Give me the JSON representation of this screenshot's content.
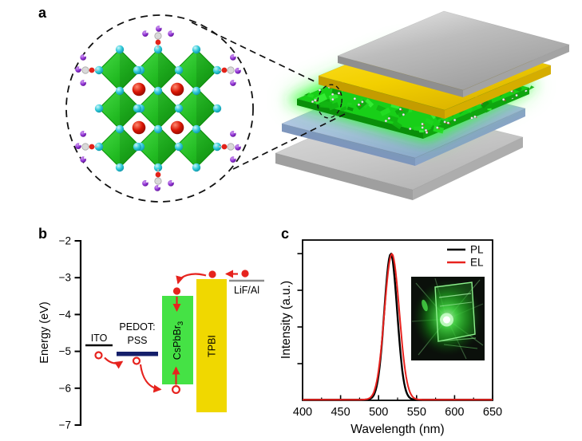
{
  "panels": {
    "a": {
      "label": "a",
      "crystal": {
        "octahedron_color": "#2bc42b",
        "octahedron_edge_color": "#0d930d",
        "cs_atom_color": "#cf1405",
        "halide_atom_color": "#27c9d8",
        "ligand_n_color": "#8d2fd2",
        "ligand_c_color": "#d9d9d9",
        "ligand_o_color": "#e32219"
      },
      "device_layers": [
        {
          "id": "silver",
          "name": "top-electrode-plate",
          "color": "#c9c9c9"
        },
        {
          "id": "gold",
          "name": "gold-layer",
          "color": "#f2cf00"
        },
        {
          "id": "green",
          "name": "perovskite-emissive-layer",
          "color": "#18cf18",
          "glow": "#2bff2b"
        },
        {
          "id": "blue",
          "name": "blue-layer",
          "color": "#a9bfe0"
        },
        {
          "id": "gray",
          "name": "substrate-plate",
          "color": "#cbcbcb"
        }
      ]
    },
    "b": {
      "label": "b",
      "axis": {
        "label": "Energy (eV)",
        "tick_labels": [
          "−2",
          "−3",
          "−4",
          "−5",
          "−6",
          "−7"
        ],
        "range_ev": [
          -7,
          -2
        ]
      },
      "materials": {
        "ito": {
          "label": "ITO",
          "level_ev": -4.85
        },
        "pedot": {
          "label_line1": "PEDOT:",
          "label_line2": "PSS",
          "level_ev": -5.05,
          "color": "#141f6a"
        },
        "perovskite": {
          "label": "CsPbBr",
          "label_sub": "3",
          "cbm_ev": -3.5,
          "vbm_ev": -5.9,
          "color": "#45e245"
        },
        "tpbi": {
          "label": "TPBI",
          "lumo_ev": -3.05,
          "homo_ev": -6.65,
          "color": "#f0d800"
        },
        "cathode": {
          "label": "LiF/Al",
          "level_ev": -3.1,
          "color": "#8c8c8c"
        }
      },
      "carrier_color": "#e6231e"
    },
    "c": {
      "label": "c",
      "chart_data": {
        "type": "line",
        "xlabel": "Wavelength (nm)",
        "ylabel": "Intensity (a.u.)",
        "xlim": [
          400,
          650
        ],
        "xticks": [
          400,
          450,
          500,
          550,
          600,
          650
        ],
        "x_minor_step": 25,
        "ylim": [
          0,
          1.05
        ],
        "grid": false,
        "legend_position": "top-right",
        "series": [
          {
            "name": "PL",
            "color": "#000000",
            "peak_nm": 516.0,
            "fwhm_nm": 20,
            "amplitude": 1.0
          },
          {
            "name": "EL",
            "color": "#e8231f",
            "peak_nm": 517.5,
            "fwhm_nm": 23,
            "amplitude": 1.0
          }
        ]
      },
      "inset_glow_color": "#35e435"
    }
  }
}
